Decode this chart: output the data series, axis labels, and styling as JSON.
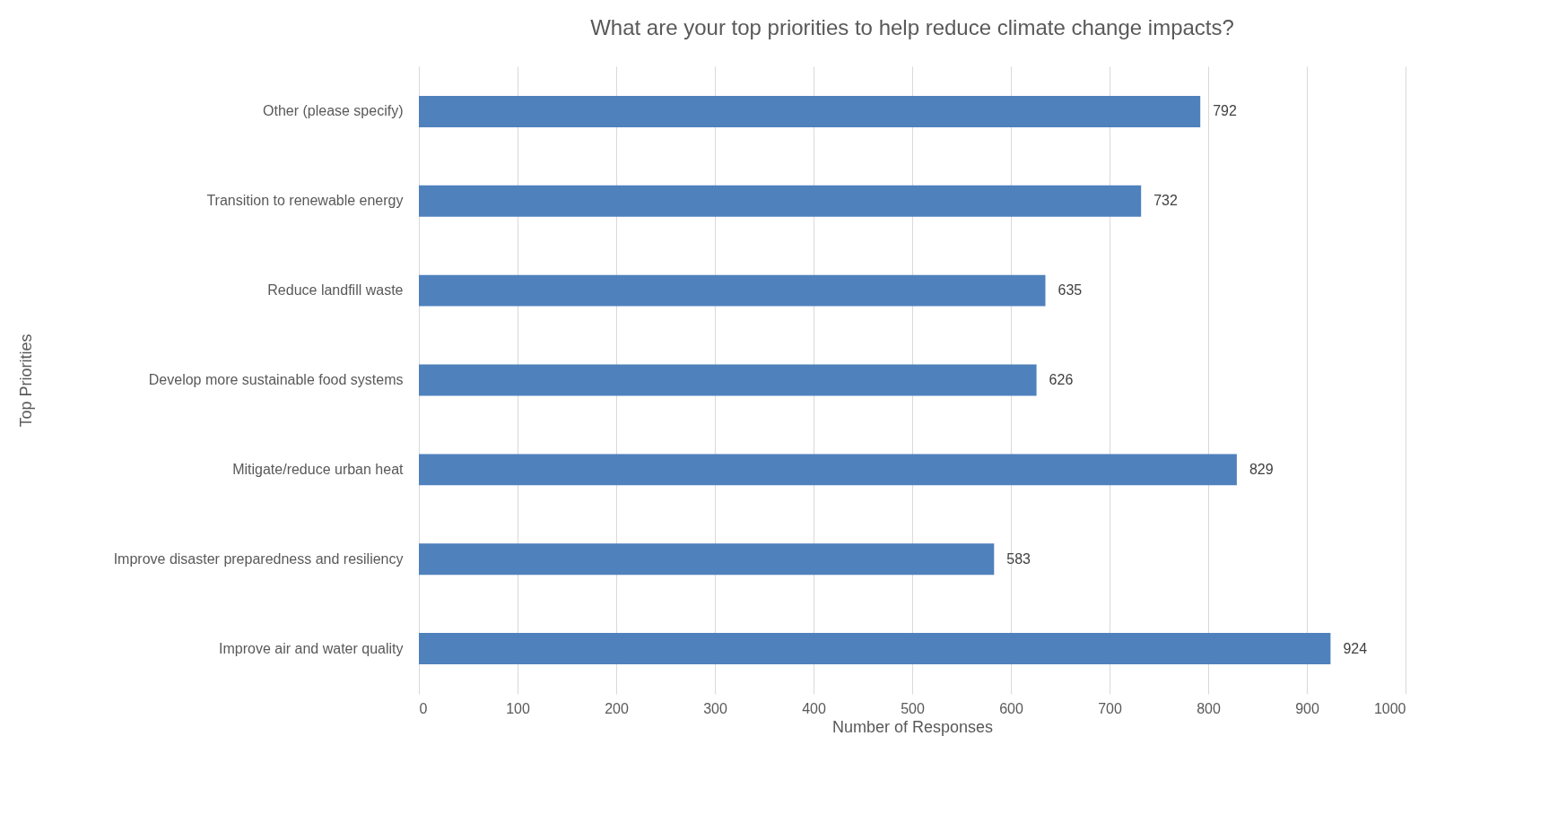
{
  "chart_data": {
    "type": "bar",
    "orientation": "horizontal",
    "title": "What are your top priorities to help reduce climate change impacts?",
    "xlabel": "Number of Responses",
    "ylabel": "Top Priorities",
    "categories": [
      "Other (please specify)",
      "Transition to renewable energy",
      "Reduce landfill waste",
      "Develop more sustainable food systems",
      "Mitigate/reduce urban heat",
      "Improve disaster preparedness and resiliency",
      "Improve air and water quality"
    ],
    "values": [
      792,
      732,
      635,
      626,
      829,
      583,
      924
    ],
    "color": "#4f81bd",
    "xlim": [
      0,
      1000
    ],
    "xticks": [
      0,
      100,
      200,
      300,
      400,
      500,
      600,
      700,
      800,
      900,
      1000
    ],
    "grid": "x",
    "data_labels": true
  }
}
